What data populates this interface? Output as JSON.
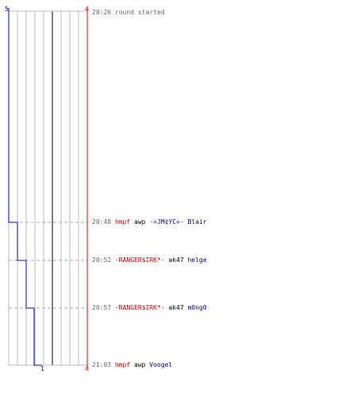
{
  "chart_data": {
    "type": "line",
    "y_left_top_label": "5",
    "y_right_top_label": "4",
    "x_bottom_left_label": "1",
    "x_bottom_right_label": "4",
    "series": [
      {
        "color": "#0000cc",
        "values": [
          5,
          4,
          3,
          2,
          1
        ]
      },
      {
        "color": "#ff0000",
        "values": [
          4,
          4,
          4,
          4,
          4
        ]
      }
    ]
  },
  "events": [
    {
      "time": "20:26",
      "text": "round started",
      "type": "start"
    },
    {
      "time": "20:48",
      "killer": "hmpf",
      "weapon": "awp",
      "victim": "-=JM¢YC=- Blair",
      "killer_color": "#cc0000"
    },
    {
      "time": "20:52",
      "killer": "-RANGER$IRK*-",
      "weapon": "ak47",
      "victim": "helge",
      "killer_color": "#cc0000"
    },
    {
      "time": "20:57",
      "killer": "-RANGER$IRK*-",
      "weapon": "ak47",
      "victim": "m0ng0",
      "killer_color": "#cc0000"
    },
    {
      "time": "21:03",
      "killer": "hmpf",
      "weapon": "awp",
      "victim": "Voogel",
      "killer_color": "#cc0000"
    }
  ]
}
